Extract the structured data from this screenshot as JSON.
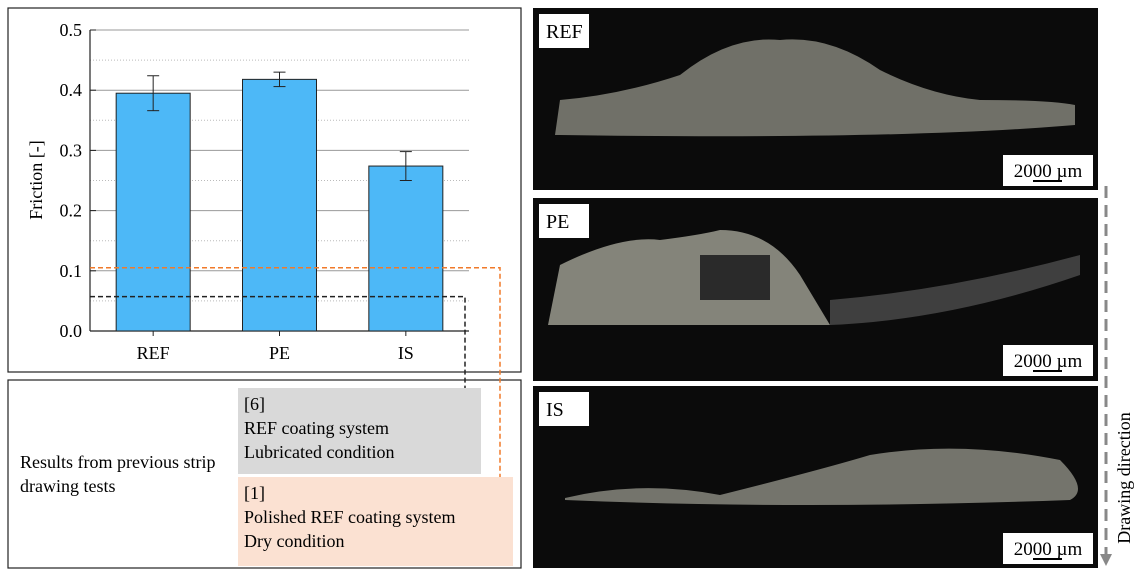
{
  "chart_data": {
    "type": "bar",
    "ylabel": "Friction [-]",
    "categories": [
      "REF",
      "PE",
      "IS"
    ],
    "values": [
      0.395,
      0.418,
      0.274
    ],
    "errors": [
      0.029,
      0.012,
      0.024
    ],
    "color": "#4db8f7",
    "ylim": [
      0,
      0.5
    ],
    "yticks": [
      {
        "value": 0,
        "label": "0.0"
      },
      0.1,
      0.2,
      0.3,
      0.4,
      0.5
    ],
    "minor_grid": [
      0.05,
      0.15,
      0.25,
      0.35,
      0.45
    ],
    "grid": true,
    "reference_lines": [
      {
        "value": 0.105,
        "color": "#f07a2a"
      },
      {
        "value": 0.057,
        "color": "#222222"
      }
    ]
  },
  "legend": {
    "title": "Results from previous strip drawing tests",
    "references": [
      {
        "citation": "[6]",
        "lines": [
          "REF coating system",
          "Lubricated condition"
        ],
        "color": "#d9d9d9"
      },
      {
        "citation": "[1]",
        "lines": [
          "Polished REF coating system",
          "Dry condition"
        ],
        "color": "#fbe1d2"
      }
    ]
  },
  "images": [
    {
      "label": "REF",
      "scale": "2000 µm"
    },
    {
      "label": "PE",
      "scale": "2000 µm"
    },
    {
      "label": "IS",
      "scale": "2000 µm"
    }
  ],
  "arrow_label": "Drawing direction"
}
